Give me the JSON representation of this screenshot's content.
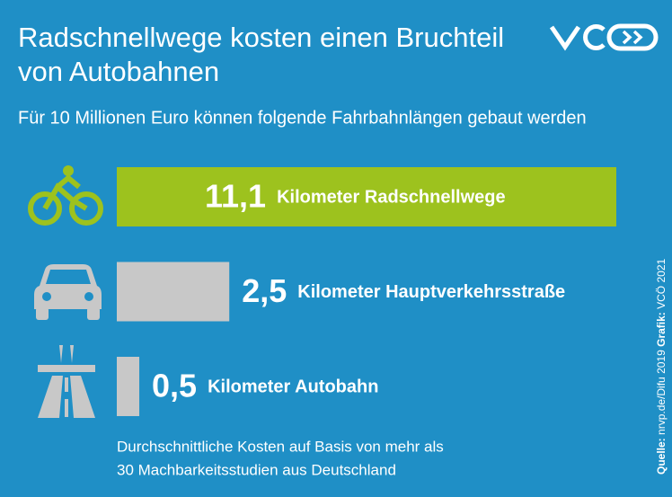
{
  "chart_data": {
    "type": "bar",
    "orientation": "horizontal",
    "title": [
      "Radschnellwege kosten einen Bruchteil",
      "von Autobahnen"
    ],
    "subtitle": "Für 10 Millionen Euro können folgende Fahrbahnlängen gebaut werden",
    "categories": [
      "Kilometer Radschnellwege",
      "Kilometer Hauptverkehrsstraße",
      "Kilometer Autobahn"
    ],
    "values": [
      11.1,
      2.5,
      0.5
    ],
    "value_labels": [
      "11,1",
      "2,5",
      "0,5"
    ],
    "colors": [
      "#9dc21e",
      "#c8c8c8",
      "#c8c8c8"
    ],
    "note": [
      "Durchschnittliche Kosten auf Basis von mehr als",
      "30 Machbarkeitsstudien aus Deutschland"
    ],
    "source_label": "Quelle:",
    "source": "nrvp.de/Difu 2019",
    "credit_label": "Grafik:",
    "credit": "VCÖ 2021"
  }
}
